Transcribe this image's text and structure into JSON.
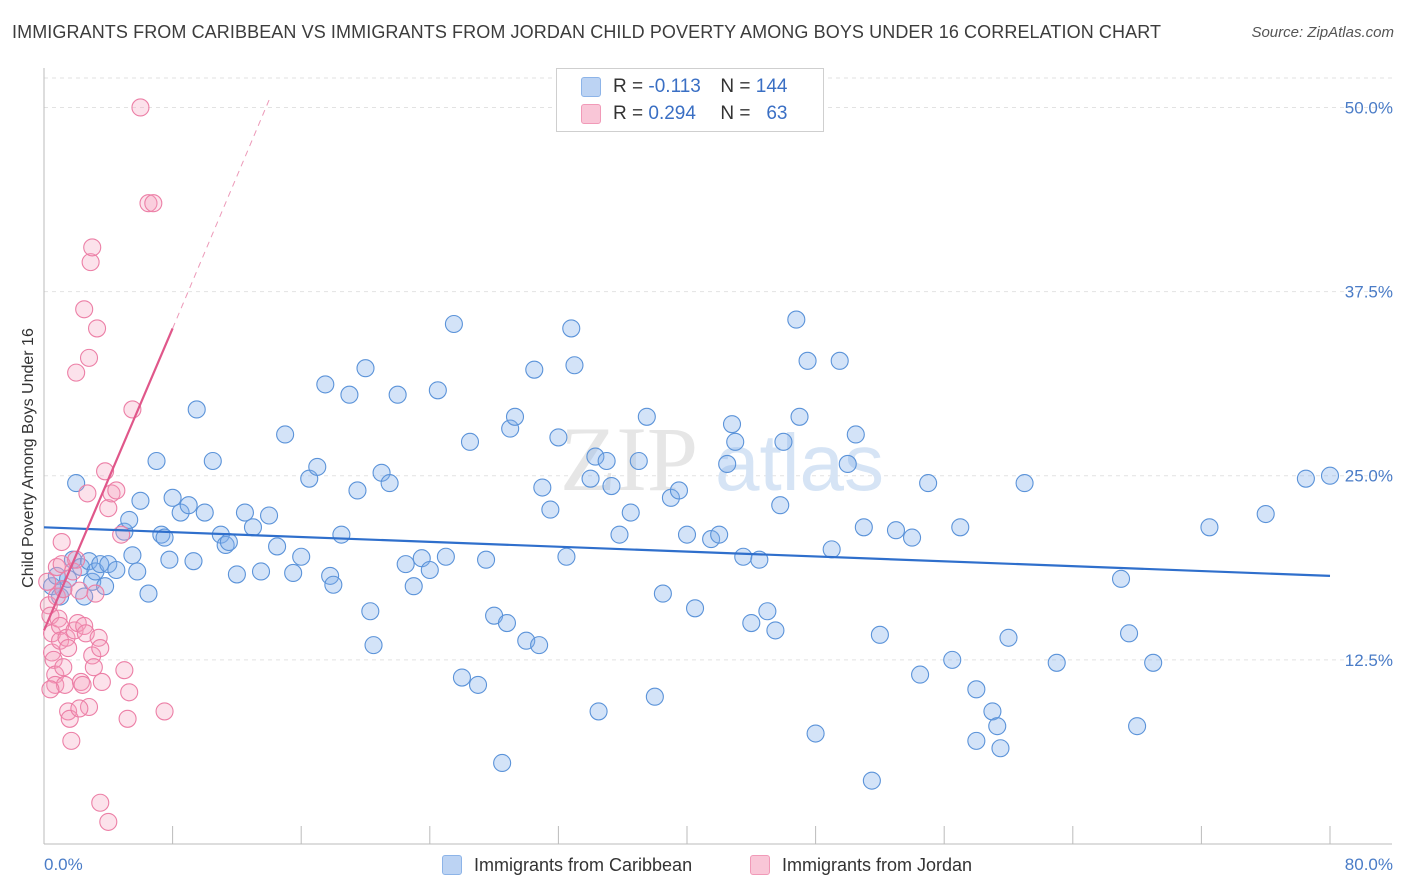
{
  "title": "IMMIGRANTS FROM CARIBBEAN VS IMMIGRANTS FROM JORDAN CHILD POVERTY AMONG BOYS UNDER 16 CORRELATION CHART",
  "source": "Source: ZipAtlas.com",
  "watermark": {
    "zip": "ZIP",
    "atlas": "atlas"
  },
  "legend": {
    "rows": [
      {
        "r_label": "R = ",
        "r_value": "-0.113",
        "n_label": "N = ",
        "n_value": "144",
        "color": "#8db4e8",
        "fill": "#bcd3f3"
      },
      {
        "r_label": "R = ",
        "r_value": "0.294",
        "n_label": "N = ",
        "n_value": "63",
        "color": "#f19ab8",
        "fill": "#f9c6d7"
      }
    ]
  },
  "bottom_legend": {
    "caribbean": "Immigrants from Caribbean",
    "jordan": "Immigrants from Jordan"
  },
  "chart_data": {
    "type": "scatter",
    "ylabel": "Child Poverty Among Boys Under 16",
    "xlim": [
      0,
      80
    ],
    "ylim": [
      0,
      52
    ],
    "x_tick_labels": [
      "0.0%",
      "80.0%"
    ],
    "y_ticks": [
      12.5,
      25.0,
      37.5,
      50.0
    ],
    "y_tick_labels": [
      "12.5%",
      "25.0%",
      "37.5%",
      "50.0%"
    ],
    "grid": true,
    "series": [
      {
        "name": "Immigrants from Caribbean",
        "color": "#5b93d9",
        "fill": "rgba(130,175,235,0.35)",
        "trend": {
          "x": [
            0,
            80
          ],
          "y": [
            21.5,
            18.2
          ],
          "color": "#2f6fcc"
        },
        "points": [
          [
            0.5,
            17.5
          ],
          [
            0.8,
            18.2
          ],
          [
            1.0,
            16.8
          ],
          [
            1.2,
            17.3
          ],
          [
            1.5,
            18.0
          ],
          [
            1.8,
            19.3
          ],
          [
            2.0,
            24.5
          ],
          [
            2.3,
            18.8
          ],
          [
            2.5,
            16.8
          ],
          [
            2.8,
            19.2
          ],
          [
            3.0,
            17.8
          ],
          [
            3.2,
            18.5
          ],
          [
            3.5,
            19.0
          ],
          [
            3.8,
            17.5
          ],
          [
            4.0,
            19.0
          ],
          [
            4.5,
            18.6
          ],
          [
            5.0,
            21.2
          ],
          [
            5.3,
            22.0
          ],
          [
            5.5,
            19.6
          ],
          [
            5.8,
            18.5
          ],
          [
            6.0,
            23.3
          ],
          [
            6.5,
            17.0
          ],
          [
            7.0,
            26.0
          ],
          [
            7.3,
            21.0
          ],
          [
            7.5,
            20.8
          ],
          [
            7.8,
            19.3
          ],
          [
            8.0,
            23.5
          ],
          [
            8.5,
            22.5
          ],
          [
            9.0,
            23.0
          ],
          [
            9.3,
            19.2
          ],
          [
            9.5,
            29.5
          ],
          [
            10.0,
            22.5
          ],
          [
            10.5,
            26.0
          ],
          [
            11.0,
            21.0
          ],
          [
            11.3,
            20.3
          ],
          [
            11.5,
            20.5
          ],
          [
            12.0,
            18.3
          ],
          [
            12.5,
            22.5
          ],
          [
            13.0,
            21.5
          ],
          [
            13.5,
            18.5
          ],
          [
            14.0,
            22.3
          ],
          [
            14.5,
            20.2
          ],
          [
            15.0,
            27.8
          ],
          [
            15.5,
            18.4
          ],
          [
            16.0,
            19.5
          ],
          [
            16.5,
            24.8
          ],
          [
            17.0,
            25.6
          ],
          [
            17.5,
            31.2
          ],
          [
            17.8,
            18.2
          ],
          [
            18.0,
            17.6
          ],
          [
            18.5,
            21.0
          ],
          [
            19.0,
            30.5
          ],
          [
            19.5,
            24.0
          ],
          [
            20.0,
            32.3
          ],
          [
            20.3,
            15.8
          ],
          [
            20.5,
            13.5
          ],
          [
            21.0,
            25.2
          ],
          [
            21.5,
            24.5
          ],
          [
            22.0,
            30.5
          ],
          [
            22.5,
            19.0
          ],
          [
            23.0,
            17.5
          ],
          [
            23.5,
            19.4
          ],
          [
            24.0,
            18.6
          ],
          [
            24.5,
            30.8
          ],
          [
            25.0,
            19.5
          ],
          [
            25.5,
            35.3
          ],
          [
            26.0,
            11.3
          ],
          [
            26.5,
            27.3
          ],
          [
            27.0,
            10.8
          ],
          [
            27.5,
            19.3
          ],
          [
            28.0,
            15.5
          ],
          [
            28.5,
            5.5
          ],
          [
            28.8,
            15.0
          ],
          [
            29.0,
            28.2
          ],
          [
            29.3,
            29.0
          ],
          [
            30.0,
            13.8
          ],
          [
            30.5,
            32.2
          ],
          [
            30.8,
            13.5
          ],
          [
            31.0,
            24.2
          ],
          [
            31.5,
            22.7
          ],
          [
            32.0,
            27.6
          ],
          [
            32.5,
            19.5
          ],
          [
            32.8,
            35.0
          ],
          [
            33.0,
            32.5
          ],
          [
            34.0,
            24.8
          ],
          [
            34.3,
            26.3
          ],
          [
            34.5,
            9.0
          ],
          [
            35.0,
            26.0
          ],
          [
            35.3,
            24.3
          ],
          [
            35.8,
            21.0
          ],
          [
            36.5,
            22.5
          ],
          [
            37.0,
            26.0
          ],
          [
            37.5,
            29.0
          ],
          [
            38.0,
            10.0
          ],
          [
            38.5,
            17.0
          ],
          [
            39.0,
            23.5
          ],
          [
            39.5,
            24.0
          ],
          [
            40.0,
            21.0
          ],
          [
            40.5,
            16.0
          ],
          [
            41.5,
            20.7
          ],
          [
            42.0,
            21.0
          ],
          [
            42.5,
            25.8
          ],
          [
            42.8,
            28.5
          ],
          [
            43.0,
            27.3
          ],
          [
            43.5,
            19.5
          ],
          [
            44.0,
            15.0
          ],
          [
            44.5,
            19.3
          ],
          [
            45.0,
            15.8
          ],
          [
            45.5,
            14.5
          ],
          [
            45.8,
            23.0
          ],
          [
            46.0,
            27.3
          ],
          [
            46.8,
            35.6
          ],
          [
            47.0,
            29.0
          ],
          [
            47.5,
            32.8
          ],
          [
            48.0,
            7.5
          ],
          [
            49.0,
            20.0
          ],
          [
            49.5,
            32.8
          ],
          [
            50.0,
            25.8
          ],
          [
            50.5,
            27.8
          ],
          [
            51.0,
            21.5
          ],
          [
            51.5,
            4.3
          ],
          [
            52.0,
            14.2
          ],
          [
            53.0,
            21.3
          ],
          [
            54.0,
            20.8
          ],
          [
            54.5,
            11.5
          ],
          [
            55.0,
            24.5
          ],
          [
            56.5,
            12.5
          ],
          [
            57.0,
            21.5
          ],
          [
            58.0,
            10.5
          ],
          [
            59.0,
            9.0
          ],
          [
            59.3,
            8.0
          ],
          [
            59.5,
            6.5
          ],
          [
            60.0,
            14.0
          ],
          [
            61.0,
            24.5
          ],
          [
            63.0,
            12.3
          ],
          [
            67.0,
            18.0
          ],
          [
            67.5,
            14.3
          ],
          [
            68.0,
            8.0
          ],
          [
            69.0,
            12.3
          ],
          [
            72.5,
            21.5
          ],
          [
            76.0,
            22.4
          ],
          [
            78.5,
            24.8
          ],
          [
            80.0,
            25.0
          ],
          [
            58.0,
            7.0
          ]
        ]
      },
      {
        "name": "Immigrants from Jordan",
        "color": "#ec7fa6",
        "fill": "rgba(245,160,190,0.30)",
        "trend": {
          "x": [
            0,
            8
          ],
          "y": [
            14.5,
            35.0
          ],
          "dashed_to": [
            14,
            50.5
          ],
          "color": "#e0578a"
        },
        "points": [
          [
            0.2,
            17.8
          ],
          [
            0.3,
            16.2
          ],
          [
            0.4,
            15.5
          ],
          [
            0.5,
            14.3
          ],
          [
            0.5,
            13.0
          ],
          [
            0.6,
            12.5
          ],
          [
            0.7,
            11.5
          ],
          [
            0.7,
            10.8
          ],
          [
            0.8,
            18.8
          ],
          [
            0.8,
            16.8
          ],
          [
            0.9,
            15.3
          ],
          [
            1.0,
            14.8
          ],
          [
            1.0,
            13.8
          ],
          [
            1.1,
            20.5
          ],
          [
            1.1,
            19.0
          ],
          [
            1.2,
            17.3
          ],
          [
            1.2,
            12.0
          ],
          [
            1.3,
            10.8
          ],
          [
            1.4,
            14.0
          ],
          [
            1.5,
            13.3
          ],
          [
            1.5,
            9.0
          ],
          [
            1.6,
            8.5
          ],
          [
            1.7,
            7.0
          ],
          [
            1.8,
            18.5
          ],
          [
            1.9,
            14.5
          ],
          [
            2.0,
            32.0
          ],
          [
            2.0,
            19.3
          ],
          [
            2.1,
            15.0
          ],
          [
            2.2,
            17.2
          ],
          [
            2.3,
            11.0
          ],
          [
            2.4,
            10.8
          ],
          [
            2.5,
            36.3
          ],
          [
            2.5,
            14.8
          ],
          [
            2.6,
            14.3
          ],
          [
            2.7,
            23.8
          ],
          [
            2.8,
            33.0
          ],
          [
            2.8,
            9.3
          ],
          [
            2.9,
            39.5
          ],
          [
            3.0,
            40.5
          ],
          [
            3.0,
            12.8
          ],
          [
            3.1,
            12.0
          ],
          [
            3.2,
            17.0
          ],
          [
            3.3,
            35.0
          ],
          [
            3.4,
            14.0
          ],
          [
            3.5,
            13.3
          ],
          [
            3.6,
            11.0
          ],
          [
            3.8,
            25.3
          ],
          [
            4.0,
            22.8
          ],
          [
            4.2,
            23.8
          ],
          [
            4.5,
            24.0
          ],
          [
            4.8,
            21.0
          ],
          [
            5.0,
            11.8
          ],
          [
            5.2,
            8.5
          ],
          [
            5.3,
            10.3
          ],
          [
            5.5,
            29.5
          ],
          [
            6.5,
            43.5
          ],
          [
            6.8,
            43.5
          ],
          [
            3.5,
            2.8
          ],
          [
            4.0,
            1.5
          ],
          [
            7.5,
            9.0
          ],
          [
            6.0,
            50.0
          ],
          [
            2.2,
            9.2
          ],
          [
            0.4,
            10.5
          ]
        ]
      }
    ]
  }
}
